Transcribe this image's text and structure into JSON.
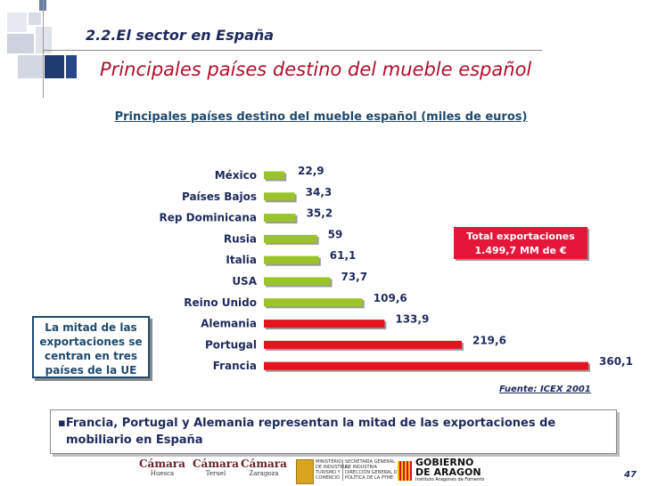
{
  "header": {
    "section_title": "2.2.El sector en España",
    "page_title": "Principales países destino del mueble español"
  },
  "chart_data": {
    "type": "bar",
    "orientation": "horizontal",
    "title": "Principales países destino del mueble español (miles de euros)",
    "categories": [
      "México",
      "Países Bajos",
      "Rep Dominicana",
      "Rusia",
      "Italia",
      "USA",
      "Reino Unido",
      "Alemania",
      "Portugal",
      "Francia"
    ],
    "values": [
      22.9,
      34.3,
      35.2,
      59,
      61.1,
      73.7,
      109.6,
      133.9,
      219.6,
      360.1
    ],
    "value_labels": [
      "22,9",
      "34,3",
      "35,2",
      "59",
      "61,1",
      "73,7",
      "109,6",
      "133,9",
      "219,6",
      "360,1"
    ],
    "bar_colors": [
      "#9ac427",
      "#9ac427",
      "#9ac427",
      "#9ac427",
      "#9ac427",
      "#9ac427",
      "#9ac427",
      "#e4141e",
      "#e4141e",
      "#e4141e"
    ],
    "xlim": [
      0,
      360.1
    ],
    "grid": false,
    "legend": "none"
  },
  "annotations": {
    "total_line1": "Total exportaciones",
    "total_line2": "1.499,7 MM de €",
    "half_line1": "La mitad de las",
    "half_line2": "exportaciones se",
    "half_line3": "centran en tres",
    "half_line4": "países de la UE",
    "source": "Fuente: ICEX 2001"
  },
  "bullet": {
    "text_line1": "Francia, Portugal y Alemania representan la mitad de las exportaciones de",
    "text_line2": "mobiliario en España"
  },
  "footer": {
    "logo1_word": "Cámara",
    "logo1_city": "Huesca",
    "logo2_word": "Cámara",
    "logo2_city": "Teruel",
    "logo3_word": "Cámara",
    "logo3_city": "Zaragoza",
    "ministry_line1": "MINISTERIO",
    "ministry_line2": "DE INDUSTRIA,",
    "ministry_line3": "TURISMO Y",
    "ministry_line4": "COMERCIO",
    "secretaria_line1": "SECRETARÍA GENERAL",
    "secretaria_line2": "DE INDUSTRIA",
    "secretaria_line3": "DIRECCIÓN GENERAL DE",
    "secretaria_line4": "POLÍTICA DE LA PYME",
    "gobierno_line1": "GOBIERNO",
    "gobierno_line2": "DE ARAGON",
    "gobierno_sub": "Instituto Aragonés de Fomento",
    "page_number": "47"
  },
  "colors": {
    "title_red": "#b0102a",
    "navy": "#1f2a5c",
    "bar_green": "#9ac427",
    "bar_red": "#e4141e",
    "box_red": "#e4173a"
  }
}
